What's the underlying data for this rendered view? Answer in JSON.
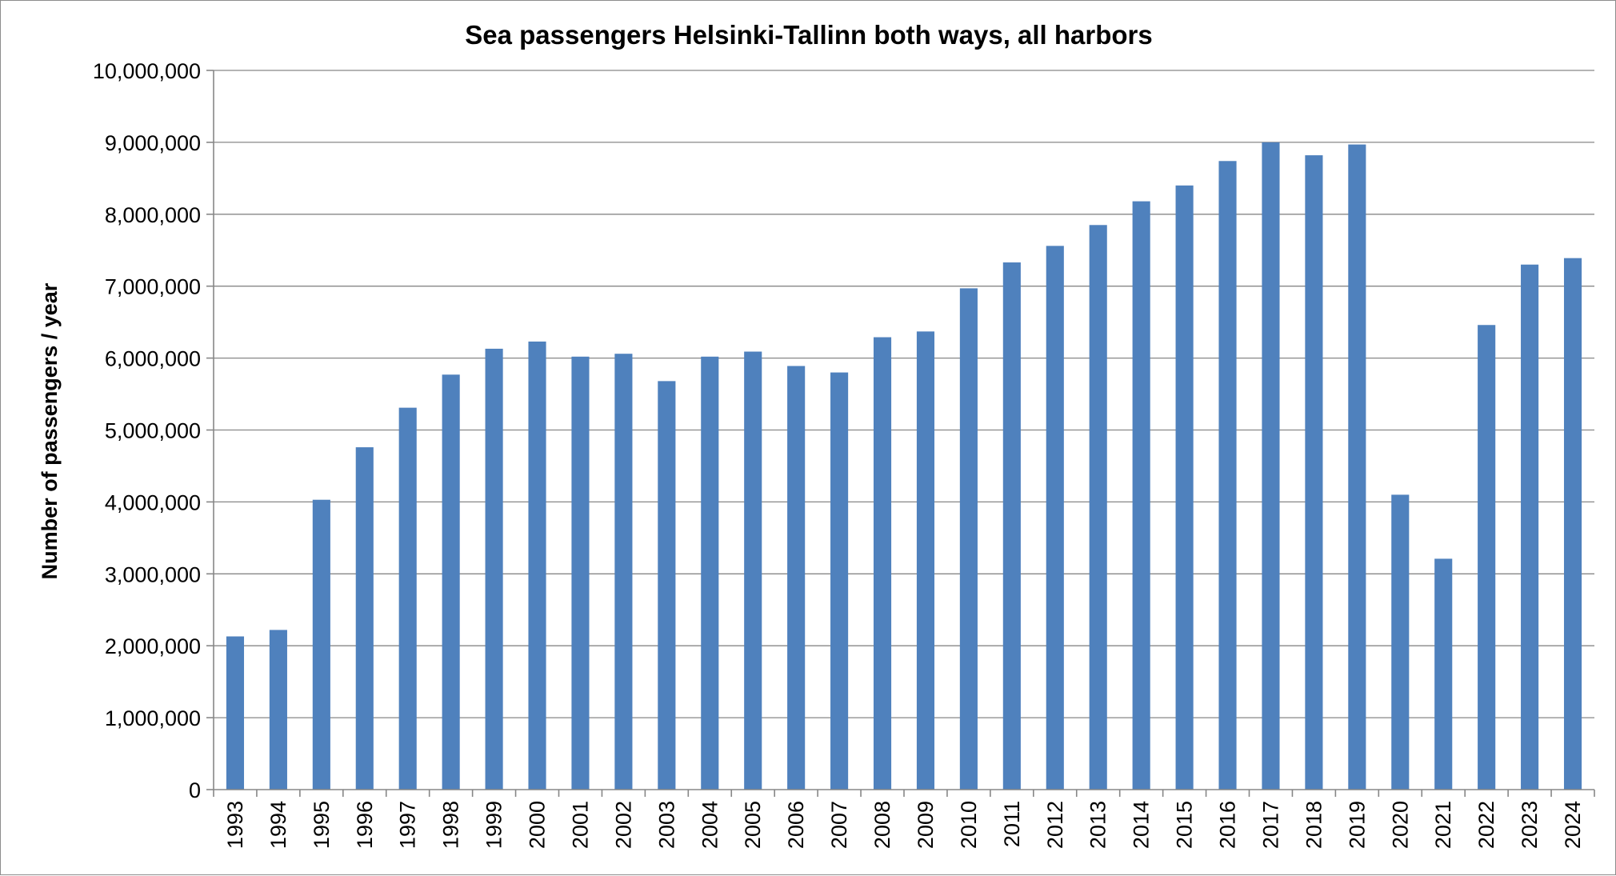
{
  "chart_data": {
    "type": "bar",
    "title": "Sea passengers Helsinki-Tallinn both ways, all harbors",
    "xlabel": "",
    "ylabel": "Number of passengers / year",
    "ylim": [
      0,
      10000000
    ],
    "yticks": [
      0,
      1000000,
      2000000,
      3000000,
      4000000,
      5000000,
      6000000,
      7000000,
      8000000,
      9000000,
      10000000
    ],
    "ytick_labels": [
      "0",
      "1,000,000",
      "2,000,000",
      "3,000,000",
      "4,000,000",
      "5,000,000",
      "6,000,000",
      "7,000,000",
      "8,000,000",
      "9,000,000",
      "10,000,000"
    ],
    "grid": true,
    "legend": "none",
    "bar_color": "#4f81bd",
    "categories": [
      "1993",
      "1994",
      "1995",
      "1996",
      "1997",
      "1998",
      "1999",
      "2000",
      "2001",
      "2002",
      "2003",
      "2004",
      "2005",
      "2006",
      "2007",
      "2008",
      "2009",
      "2010",
      "2011",
      "2012",
      "2013",
      "2014",
      "2015",
      "2016",
      "2017",
      "2018",
      "2019",
      "2020",
      "2021",
      "2022",
      "2023",
      "2024"
    ],
    "values": [
      2130000,
      2220000,
      4030000,
      4760000,
      5310000,
      5770000,
      6130000,
      6230000,
      6020000,
      6060000,
      5680000,
      6020000,
      6090000,
      5890000,
      5800000,
      6290000,
      6370000,
      6970000,
      7330000,
      7560000,
      7850000,
      8180000,
      8400000,
      8740000,
      9000000,
      8820000,
      8970000,
      4100000,
      3210000,
      6460000,
      7300000,
      7390000
    ]
  }
}
